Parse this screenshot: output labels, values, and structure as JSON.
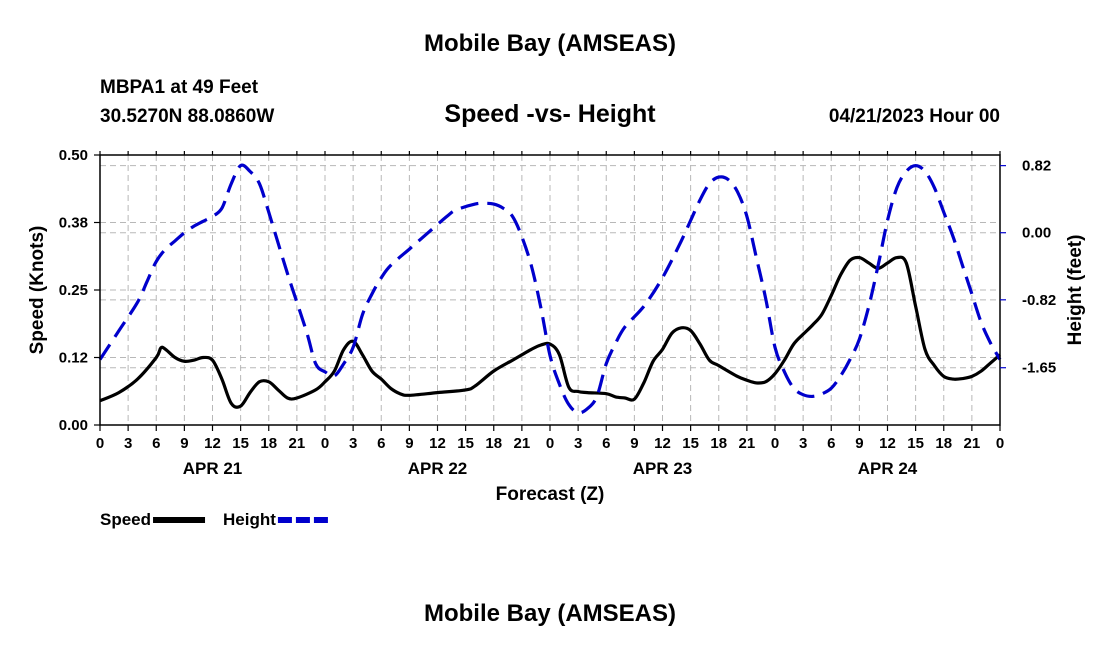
{
  "page": {
    "title": "Mobile Bay (AMSEAS)",
    "station": "MBPA1 at 49 Feet",
    "coordinates": "30.5270N  88.0860W",
    "subtitle": "Speed -vs- Height",
    "datetime": "04/21/2023 Hour 00",
    "footer_title": "Mobile Bay (AMSEAS)"
  },
  "chart_data": {
    "type": "line",
    "xlabel": "Forecast (Z)",
    "ylabel_left": "Speed (Knots)",
    "ylabel_right": "Height (feet)",
    "x_hours": [
      0,
      3,
      6,
      9,
      12,
      15,
      18,
      21,
      24,
      27,
      30,
      33,
      36,
      39,
      42,
      45,
      48,
      51,
      54,
      57,
      60,
      63,
      66,
      69,
      72,
      75,
      78,
      81,
      84,
      87,
      90,
      93,
      96
    ],
    "x_tick_labels": [
      "0",
      "3",
      "6",
      "9",
      "12",
      "15",
      "18",
      "21",
      "0",
      "3",
      "6",
      "9",
      "12",
      "15",
      "18",
      "21",
      "0",
      "3",
      "6",
      "9",
      "12",
      "15",
      "18",
      "21",
      "0",
      "3",
      "6",
      "9",
      "12",
      "15",
      "18",
      "21",
      "0"
    ],
    "day_labels": [
      {
        "label": "APR 21",
        "hour": 12
      },
      {
        "label": "APR 22",
        "hour": 36
      },
      {
        "label": "APR 23",
        "hour": 60
      },
      {
        "label": "APR 24",
        "hour": 84
      }
    ],
    "left_axis": {
      "range": [
        0,
        0.5
      ],
      "ticks": [
        0.0,
        0.125,
        0.25,
        0.375,
        0.5
      ],
      "tick_labels": [
        "0.00",
        "0.12",
        "0.25",
        "0.38",
        "0.50"
      ]
    },
    "right_axis": {
      "range": [
        -2.35,
        0.95
      ],
      "ticks": [
        -1.65,
        -0.82,
        0.0,
        0.82
      ],
      "tick_labels": [
        "-1.65",
        "-0.82",
        "0.00",
        "0.82"
      ]
    },
    "grid": true,
    "legend_position": "bottom-left",
    "series": [
      {
        "name": "Speed",
        "axis": "left",
        "color": "#000000",
        "style": "solid",
        "points": [
          [
            0,
            0.045
          ],
          [
            2,
            0.06
          ],
          [
            4,
            0.085
          ],
          [
            6,
            0.125
          ],
          [
            6.5,
            0.143
          ],
          [
            7,
            0.14
          ],
          [
            8,
            0.125
          ],
          [
            9,
            0.118
          ],
          [
            10,
            0.12
          ],
          [
            11,
            0.125
          ],
          [
            12,
            0.12
          ],
          [
            13,
            0.085
          ],
          [
            14,
            0.04
          ],
          [
            15,
            0.035
          ],
          [
            16,
            0.06
          ],
          [
            17,
            0.08
          ],
          [
            18,
            0.08
          ],
          [
            19,
            0.065
          ],
          [
            20,
            0.05
          ],
          [
            21,
            0.05
          ],
          [
            23,
            0.065
          ],
          [
            24,
            0.08
          ],
          [
            25,
            0.1
          ],
          [
            26,
            0.14
          ],
          [
            27,
            0.155
          ],
          [
            28,
            0.13
          ],
          [
            29,
            0.1
          ],
          [
            30,
            0.085
          ],
          [
            31,
            0.068
          ],
          [
            32,
            0.058
          ],
          [
            33,
            0.055
          ],
          [
            36,
            0.06
          ],
          [
            39,
            0.065
          ],
          [
            40,
            0.072
          ],
          [
            42,
            0.1
          ],
          [
            44,
            0.12
          ],
          [
            45,
            0.13
          ],
          [
            46,
            0.14
          ],
          [
            47,
            0.148
          ],
          [
            48,
            0.15
          ],
          [
            49,
            0.13
          ],
          [
            50,
            0.07
          ],
          [
            51,
            0.062
          ],
          [
            52,
            0.06
          ],
          [
            54,
            0.058
          ],
          [
            55,
            0.052
          ],
          [
            56,
            0.05
          ],
          [
            57,
            0.048
          ],
          [
            58,
            0.078
          ],
          [
            59,
            0.118
          ],
          [
            60,
            0.14
          ],
          [
            61,
            0.17
          ],
          [
            62,
            0.18
          ],
          [
            63,
            0.175
          ],
          [
            64,
            0.15
          ],
          [
            65,
            0.12
          ],
          [
            66,
            0.11
          ],
          [
            68,
            0.09
          ],
          [
            69,
            0.083
          ],
          [
            70,
            0.078
          ],
          [
            71,
            0.08
          ],
          [
            72,
            0.095
          ],
          [
            73,
            0.12
          ],
          [
            74,
            0.15
          ],
          [
            75,
            0.168
          ],
          [
            76,
            0.185
          ],
          [
            77,
            0.205
          ],
          [
            78,
            0.24
          ],
          [
            79,
            0.278
          ],
          [
            80,
            0.305
          ],
          [
            81,
            0.31
          ],
          [
            82,
            0.3
          ],
          [
            83,
            0.29
          ],
          [
            84,
            0.3
          ],
          [
            85,
            0.31
          ],
          [
            86,
            0.3
          ],
          [
            87,
            0.22
          ],
          [
            88,
            0.14
          ],
          [
            89,
            0.11
          ],
          [
            90,
            0.09
          ],
          [
            91,
            0.085
          ],
          [
            92,
            0.086
          ],
          [
            93,
            0.09
          ],
          [
            94,
            0.1
          ],
          [
            95,
            0.115
          ],
          [
            96,
            0.13
          ]
        ]
      },
      {
        "name": "Height",
        "axis": "right",
        "color": "#0000cc",
        "style": "dashed",
        "points": [
          [
            0,
            -1.55
          ],
          [
            2,
            -1.2
          ],
          [
            4,
            -0.85
          ],
          [
            5,
            -0.6
          ],
          [
            6,
            -0.35
          ],
          [
            7,
            -0.2
          ],
          [
            8,
            -0.1
          ],
          [
            9,
            0.0
          ],
          [
            10,
            0.08
          ],
          [
            11,
            0.14
          ],
          [
            12,
            0.2
          ],
          [
            13,
            0.3
          ],
          [
            14,
            0.6
          ],
          [
            15,
            0.82
          ],
          [
            16,
            0.75
          ],
          [
            17,
            0.6
          ],
          [
            18,
            0.25
          ],
          [
            20,
            -0.5
          ],
          [
            22,
            -1.2
          ],
          [
            23,
            -1.6
          ],
          [
            24,
            -1.7
          ],
          [
            25,
            -1.75
          ],
          [
            26,
            -1.6
          ],
          [
            27,
            -1.4
          ],
          [
            28,
            -1.0
          ],
          [
            29,
            -0.75
          ],
          [
            30,
            -0.55
          ],
          [
            31,
            -0.4
          ],
          [
            33,
            -0.2
          ],
          [
            35,
            0.0
          ],
          [
            37,
            0.2
          ],
          [
            38,
            0.28
          ],
          [
            40,
            0.35
          ],
          [
            41,
            0.36
          ],
          [
            42,
            0.35
          ],
          [
            43,
            0.3
          ],
          [
            44,
            0.2
          ],
          [
            45,
            -0.05
          ],
          [
            46,
            -0.4
          ],
          [
            47,
            -0.9
          ],
          [
            48,
            -1.5
          ],
          [
            49,
            -1.85
          ],
          [
            50,
            -2.1
          ],
          [
            51,
            -2.2
          ],
          [
            52,
            -2.15
          ],
          [
            53,
            -2.0
          ],
          [
            54,
            -1.6
          ],
          [
            55,
            -1.35
          ],
          [
            56,
            -1.15
          ],
          [
            58,
            -0.9
          ],
          [
            60,
            -0.55
          ],
          [
            62,
            -0.1
          ],
          [
            63,
            0.15
          ],
          [
            64,
            0.4
          ],
          [
            65,
            0.6
          ],
          [
            66,
            0.68
          ],
          [
            67,
            0.65
          ],
          [
            68,
            0.5
          ],
          [
            69,
            0.2
          ],
          [
            70,
            -0.3
          ],
          [
            71,
            -0.8
          ],
          [
            72,
            -1.4
          ],
          [
            73,
            -1.7
          ],
          [
            74,
            -1.9
          ],
          [
            75,
            -1.98
          ],
          [
            76,
            -2.0
          ],
          [
            77,
            -1.97
          ],
          [
            78,
            -1.9
          ],
          [
            79,
            -1.75
          ],
          [
            80,
            -1.55
          ],
          [
            81,
            -1.3
          ],
          [
            82,
            -0.9
          ],
          [
            83,
            -0.4
          ],
          [
            84,
            0.15
          ],
          [
            85,
            0.55
          ],
          [
            86,
            0.75
          ],
          [
            87,
            0.82
          ],
          [
            88,
            0.75
          ],
          [
            89,
            0.55
          ],
          [
            90,
            0.25
          ],
          [
            91,
            -0.05
          ],
          [
            92,
            -0.4
          ],
          [
            93,
            -0.75
          ],
          [
            94,
            -1.1
          ],
          [
            95,
            -1.35
          ],
          [
            96,
            -1.55
          ]
        ]
      }
    ],
    "legend": [
      {
        "label": "Speed",
        "color": "#000000",
        "style": "solid"
      },
      {
        "label": "Height",
        "color": "#0000cc",
        "style": "dashed"
      }
    ]
  }
}
